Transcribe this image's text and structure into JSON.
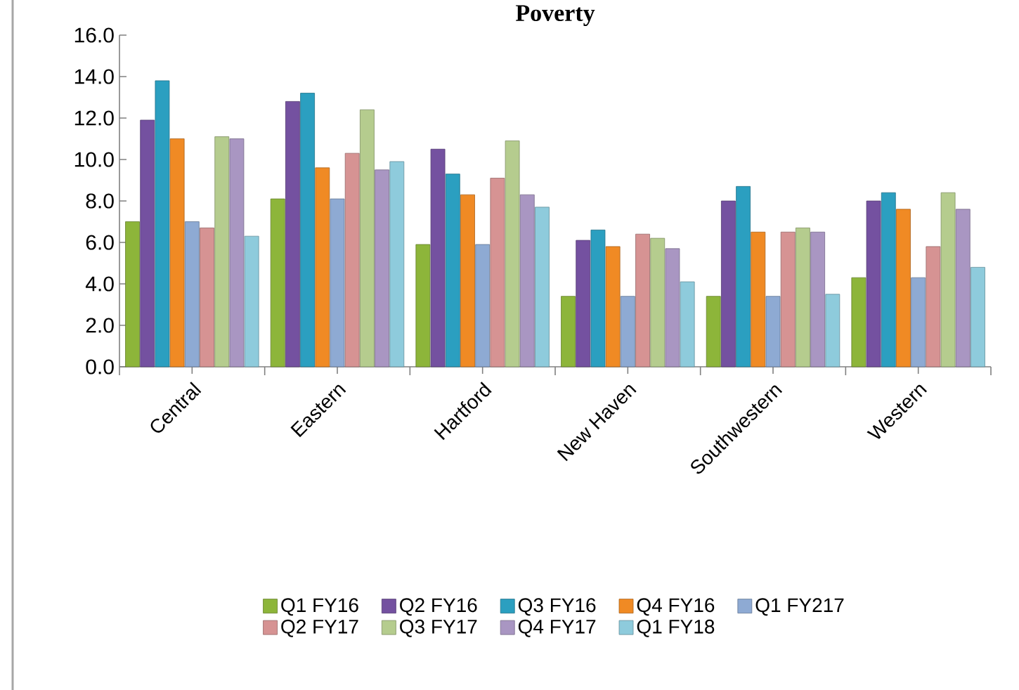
{
  "chart_data": {
    "type": "bar",
    "title": "Poverty",
    "categories": [
      "Central",
      "Eastern",
      "Hartford",
      "New Haven",
      "Southwestern",
      "Western"
    ],
    "series": [
      {
        "name": "Q1 FY16",
        "color": "#8db53a",
        "values": [
          7.0,
          8.1,
          5.9,
          3.4,
          3.4,
          4.3
        ]
      },
      {
        "name": "Q2 FY16",
        "color": "#7451a0",
        "values": [
          11.9,
          12.8,
          10.5,
          6.1,
          8.0,
          8.0
        ]
      },
      {
        "name": "Q3 FY16",
        "color": "#2b9fc0",
        "values": [
          13.8,
          13.2,
          9.3,
          6.6,
          8.7,
          8.4
        ]
      },
      {
        "name": "Q4 FY16",
        "color": "#f08a24",
        "values": [
          11.0,
          9.6,
          8.3,
          5.8,
          6.5,
          7.6
        ]
      },
      {
        "name": "Q1 FY217",
        "color": "#8eaad3",
        "values": [
          7.0,
          8.1,
          5.9,
          3.4,
          3.4,
          4.3
        ]
      },
      {
        "name": "Q2 FY17",
        "color": "#d69393",
        "values": [
          6.7,
          10.3,
          9.1,
          6.4,
          6.5,
          5.8
        ]
      },
      {
        "name": "Q3 FY17",
        "color": "#b5cc8e",
        "values": [
          11.1,
          12.4,
          10.9,
          6.2,
          6.7,
          8.4
        ]
      },
      {
        "name": "Q4 FY17",
        "color": "#a996c2",
        "values": [
          11.0,
          9.5,
          8.3,
          5.7,
          6.5,
          7.6
        ]
      },
      {
        "name": "Q1 FY18",
        "color": "#8ecbdc",
        "values": [
          6.3,
          9.9,
          7.7,
          4.1,
          3.5,
          4.8
        ]
      }
    ],
    "ylim": [
      0,
      16
    ],
    "yticks": [
      {
        "value": 0,
        "label": "0.0"
      },
      {
        "value": 2,
        "label": "2.0"
      },
      {
        "value": 4,
        "label": "4.0"
      },
      {
        "value": 6,
        "label": "6.0"
      },
      {
        "value": 8,
        "label": "8.0"
      },
      {
        "value": 10,
        "label": "10.0"
      },
      {
        "value": 12,
        "label": "12.0"
      },
      {
        "value": 14,
        "label": "14.0"
      },
      {
        "value": 16,
        "label": "16.0"
      }
    ],
    "legend": "bottom"
  }
}
